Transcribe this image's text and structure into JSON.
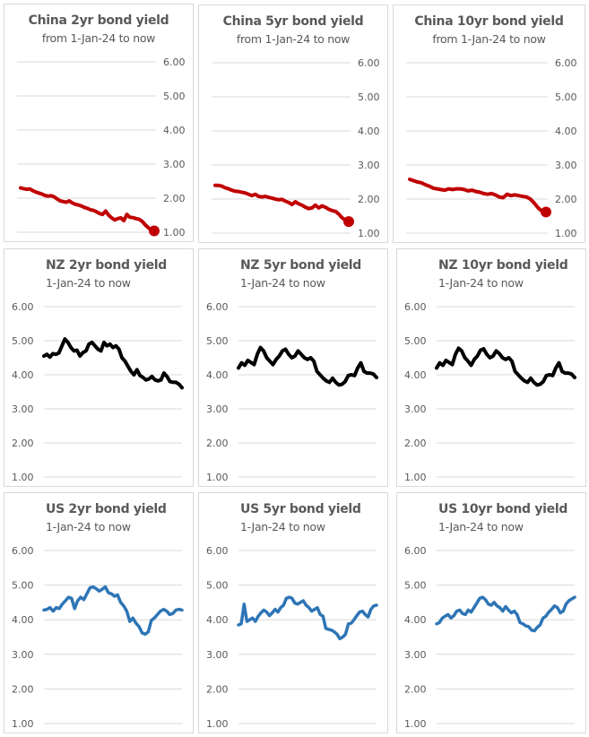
{
  "chart_data": [
    {
      "id": "china-2yr",
      "type": "line",
      "title": "China 2yr bond yield",
      "subtitle": "from 1-Jan-24 to now",
      "ylim": [
        1,
        6
      ],
      "yticks": [
        "1.00",
        "2.00",
        "3.00",
        "4.00",
        "5.00",
        "6.00"
      ],
      "axis_side": "right",
      "color": "#c00000",
      "end_marker": true,
      "grid": true,
      "series": [
        {
          "name": "China 2yr",
          "values": [
            2.3,
            2.28,
            2.26,
            2.27,
            2.22,
            2.18,
            2.15,
            2.12,
            2.08,
            2.06,
            2.07,
            2.04,
            1.98,
            1.92,
            1.9,
            1.88,
            1.92,
            1.86,
            1.82,
            1.8,
            1.77,
            1.73,
            1.7,
            1.66,
            1.64,
            1.6,
            1.55,
            1.52,
            1.62,
            1.5,
            1.42,
            1.36,
            1.4,
            1.42,
            1.34,
            1.52,
            1.44,
            1.43,
            1.4,
            1.38,
            1.32,
            1.22,
            1.14,
            1.06,
            1.04
          ]
        }
      ]
    },
    {
      "id": "china-5yr",
      "type": "line",
      "title": "China 5yr bond yield",
      "subtitle": "from 1-Jan-24 to now",
      "ylim": [
        1,
        6
      ],
      "yticks": [
        "1.00",
        "2.00",
        "3.00",
        "4.00",
        "5.00",
        "6.00"
      ],
      "axis_side": "right",
      "color": "#c00000",
      "end_marker": true,
      "grid": true,
      "series": [
        {
          "name": "China 5yr",
          "values": [
            2.4,
            2.4,
            2.38,
            2.33,
            2.3,
            2.26,
            2.23,
            2.22,
            2.2,
            2.18,
            2.14,
            2.1,
            2.14,
            2.08,
            2.06,
            2.08,
            2.05,
            2.03,
            2.0,
            1.98,
            1.99,
            1.94,
            1.9,
            1.84,
            1.92,
            1.86,
            1.82,
            1.76,
            1.72,
            1.74,
            1.82,
            1.74,
            1.8,
            1.76,
            1.7,
            1.66,
            1.64,
            1.56,
            1.45,
            1.38,
            1.34
          ]
        }
      ]
    },
    {
      "id": "china-10yr",
      "type": "line",
      "title": "China 10yr bond yield",
      "subtitle": "from 1-Jan-24 to now",
      "ylim": [
        1,
        6
      ],
      "yticks": [
        "1.00",
        "2.00",
        "3.00",
        "4.00",
        "5.00",
        "6.00"
      ],
      "axis_side": "right",
      "color": "#c00000",
      "end_marker": true,
      "grid": true,
      "series": [
        {
          "name": "China 10yr",
          "values": [
            2.58,
            2.54,
            2.5,
            2.48,
            2.42,
            2.38,
            2.32,
            2.3,
            2.28,
            2.26,
            2.3,
            2.28,
            2.3,
            2.3,
            2.28,
            2.24,
            2.26,
            2.22,
            2.2,
            2.16,
            2.14,
            2.16,
            2.12,
            2.06,
            2.04,
            2.14,
            2.1,
            2.12,
            2.1,
            2.08,
            2.06,
            2.0,
            1.88,
            1.74,
            1.64,
            1.62
          ]
        }
      ]
    },
    {
      "id": "nz-2yr",
      "type": "line",
      "title": "NZ 2yr bond yield",
      "subtitle": "1-Jan-24 to now",
      "ylim": [
        1,
        6
      ],
      "yticks": [
        "1.00",
        "2.00",
        "3.00",
        "4.00",
        "5.00",
        "6.00"
      ],
      "axis_side": "left",
      "color": "#000000",
      "end_marker": false,
      "grid": true,
      "series": [
        {
          "name": "NZ 2yr",
          "values": [
            4.55,
            4.6,
            4.52,
            4.62,
            4.6,
            4.64,
            4.85,
            5.05,
            4.95,
            4.8,
            4.7,
            4.72,
            4.55,
            4.65,
            4.7,
            4.9,
            4.95,
            4.85,
            4.75,
            4.7,
            4.95,
            4.85,
            4.9,
            4.8,
            4.85,
            4.75,
            4.5,
            4.4,
            4.25,
            4.1,
            4.0,
            4.15,
            3.98,
            3.92,
            3.85,
            3.88,
            3.95,
            3.85,
            3.82,
            3.85,
            4.05,
            3.95,
            3.8,
            3.78,
            3.78,
            3.72,
            3.62
          ]
        }
      ]
    },
    {
      "id": "nz-5yr",
      "type": "line",
      "title": "NZ 5yr bond yield",
      "subtitle": "1-Jan-24 to now",
      "ylim": [
        1,
        6
      ],
      "yticks": [
        "1.00",
        "2.00",
        "3.00",
        "4.00",
        "5.00",
        "6.00"
      ],
      "axis_side": "left",
      "color": "#000000",
      "end_marker": false,
      "grid": true,
      "series": [
        {
          "name": "NZ 5yr",
          "values": [
            4.2,
            4.35,
            4.28,
            4.42,
            4.36,
            4.3,
            4.6,
            4.8,
            4.7,
            4.5,
            4.4,
            4.3,
            4.45,
            4.55,
            4.7,
            4.75,
            4.6,
            4.5,
            4.55,
            4.7,
            4.6,
            4.5,
            4.45,
            4.5,
            4.4,
            4.1,
            4.0,
            3.9,
            3.82,
            3.78,
            3.9,
            3.78,
            3.7,
            3.72,
            3.8,
            3.98,
            4.0,
            3.98,
            4.2,
            4.35,
            4.1,
            4.05,
            4.05,
            4.02,
            3.92
          ]
        }
      ]
    },
    {
      "id": "nz-10yr",
      "type": "line",
      "title": "NZ 10yr bond yield",
      "subtitle": "1-Jan-24 to now",
      "ylim": [
        1,
        6
      ],
      "yticks": [
        "1.00",
        "2.00",
        "3.00",
        "4.00",
        "5.00",
        "6.00"
      ],
      "axis_side": "left",
      "color": "#000000",
      "end_marker": false,
      "grid": true,
      "series": [
        {
          "name": "NZ 10yr",
          "values": [
            4.2,
            4.35,
            4.28,
            4.42,
            4.36,
            4.3,
            4.6,
            4.78,
            4.7,
            4.5,
            4.4,
            4.28,
            4.45,
            4.55,
            4.72,
            4.76,
            4.6,
            4.5,
            4.55,
            4.7,
            4.62,
            4.5,
            4.45,
            4.5,
            4.4,
            4.1,
            4.0,
            3.9,
            3.82,
            3.78,
            3.9,
            3.78,
            3.7,
            3.72,
            3.8,
            3.98,
            4.0,
            3.98,
            4.2,
            4.35,
            4.1,
            4.05,
            4.05,
            4.02,
            3.92
          ]
        }
      ]
    },
    {
      "id": "us-2yr",
      "type": "line",
      "title": "US 2yr bond yield",
      "subtitle": "1-Jan-24 to now",
      "ylim": [
        1,
        6
      ],
      "yticks": [
        "1.00",
        "2.00",
        "3.00",
        "4.00",
        "5.00",
        "6.00"
      ],
      "axis_side": "left",
      "color": "#2e75b6",
      "end_marker": false,
      "grid": true,
      "series": [
        {
          "name": "US 2yr",
          "values": [
            4.28,
            4.3,
            4.35,
            4.25,
            4.35,
            4.32,
            4.45,
            4.55,
            4.65,
            4.62,
            4.32,
            4.55,
            4.65,
            4.58,
            4.75,
            4.92,
            4.95,
            4.9,
            4.83,
            4.88,
            4.95,
            4.78,
            4.75,
            4.68,
            4.72,
            4.5,
            4.4,
            4.25,
            3.95,
            4.05,
            3.9,
            3.8,
            3.62,
            3.58,
            3.65,
            3.98,
            4.05,
            4.15,
            4.25,
            4.3,
            4.25,
            4.15,
            4.18,
            4.28,
            4.3,
            4.28
          ]
        }
      ]
    },
    {
      "id": "us-5yr",
      "type": "line",
      "title": "US 5yr bond yield",
      "subtitle": "1-Jan-24 to now",
      "ylim": [
        1,
        6
      ],
      "yticks": [
        "1.00",
        "2.00",
        "3.00",
        "4.00",
        "5.00",
        "6.00"
      ],
      "axis_side": "left",
      "color": "#2e75b6",
      "end_marker": false,
      "grid": true,
      "series": [
        {
          "name": "US 5yr",
          "values": [
            3.85,
            3.88,
            4.45,
            3.95,
            4.0,
            4.05,
            3.95,
            4.1,
            4.2,
            4.28,
            4.22,
            4.12,
            4.2,
            4.3,
            4.22,
            4.35,
            4.42,
            4.62,
            4.65,
            4.62,
            4.48,
            4.45,
            4.5,
            4.55,
            4.42,
            4.35,
            4.25,
            4.3,
            4.35,
            4.15,
            4.1,
            3.75,
            3.72,
            3.7,
            3.65,
            3.58,
            3.45,
            3.5,
            3.58,
            3.88,
            3.9,
            4.0,
            4.12,
            4.22,
            4.25,
            4.15,
            4.08,
            4.3,
            4.4,
            4.42
          ]
        }
      ]
    },
    {
      "id": "us-10yr",
      "type": "line",
      "title": "US 10yr bond yield",
      "subtitle": "1-Jan-24 to now",
      "ylim": [
        1,
        6
      ],
      "yticks": [
        "1.00",
        "2.00",
        "3.00",
        "4.00",
        "5.00",
        "6.00"
      ],
      "axis_side": "left",
      "color": "#2e75b6",
      "end_marker": false,
      "grid": true,
      "series": [
        {
          "name": "US 10yr",
          "values": [
            3.88,
            3.92,
            4.05,
            4.1,
            4.15,
            4.05,
            4.12,
            4.25,
            4.28,
            4.18,
            4.15,
            4.28,
            4.22,
            4.35,
            4.48,
            4.62,
            4.65,
            4.58,
            4.45,
            4.42,
            4.5,
            4.4,
            4.35,
            4.25,
            4.38,
            4.28,
            4.2,
            4.25,
            4.15,
            3.92,
            3.88,
            3.82,
            3.8,
            3.7,
            3.68,
            3.78,
            3.85,
            4.05,
            4.1,
            4.22,
            4.3,
            4.4,
            4.35,
            4.2,
            4.25,
            4.45,
            4.55,
            4.6,
            4.65
          ]
        }
      ]
    }
  ]
}
